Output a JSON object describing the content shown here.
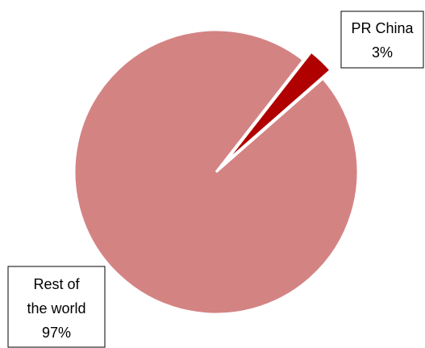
{
  "chart_data": {
    "type": "pie",
    "title": "",
    "slices": [
      {
        "label_lines": [
          "PR China",
          "3%"
        ],
        "name": "PR China",
        "value": 3,
        "color": "#b00000",
        "exploded": true
      },
      {
        "label_lines": [
          "Rest of",
          "the world",
          "97%"
        ],
        "name": "Rest of the world",
        "value": 97,
        "color": "#d48383",
        "exploded": false
      }
    ]
  }
}
